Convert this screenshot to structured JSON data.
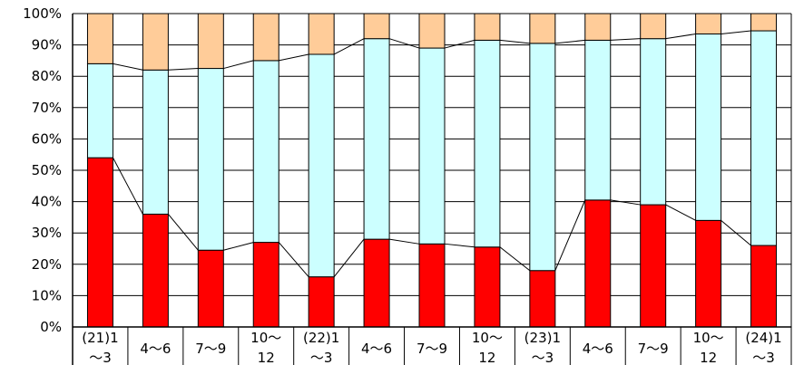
{
  "chart_data": {
    "type": "bar",
    "stacked": true,
    "percent_stacked": true,
    "categories": [
      "(21)1\n〜3",
      "4〜6",
      "7〜9",
      "10〜\n12",
      "(22)1\n〜3",
      "4〜6",
      "7〜9",
      "10〜\n12",
      "(23)1\n〜3",
      "4〜6",
      "7〜9",
      "10〜\n12",
      "(24)1\n〜3"
    ],
    "series": [
      {
        "values": [
          54,
          36,
          24.5,
          27,
          16,
          28,
          26.5,
          25.5,
          18,
          40.5,
          39,
          34,
          26
        ]
      },
      {
        "values": [
          30,
          46,
          58,
          58,
          71,
          64,
          62.5,
          66,
          72.5,
          51,
          53,
          59.5,
          68.5
        ]
      },
      {
        "values": [
          16,
          18,
          17.5,
          15,
          13,
          8,
          11,
          8.5,
          9.5,
          8.5,
          8,
          6.5,
          5.5
        ]
      }
    ],
    "ylim": [
      0,
      100
    ],
    "ytick_labels": [
      "0%",
      "10%",
      "20%",
      "30%",
      "40%",
      "50%",
      "60%",
      "70%",
      "80%",
      "90%",
      "100%"
    ],
    "series_lines": "line connects top of each series segment across bars",
    "grid": true,
    "legend": "none",
    "colors": {
      "series1": "#ff0000",
      "series2": "#ccffff",
      "series3": "#ffcc99",
      "border": "#000000",
      "gridline": "#000000",
      "background": "#ffffff"
    }
  }
}
